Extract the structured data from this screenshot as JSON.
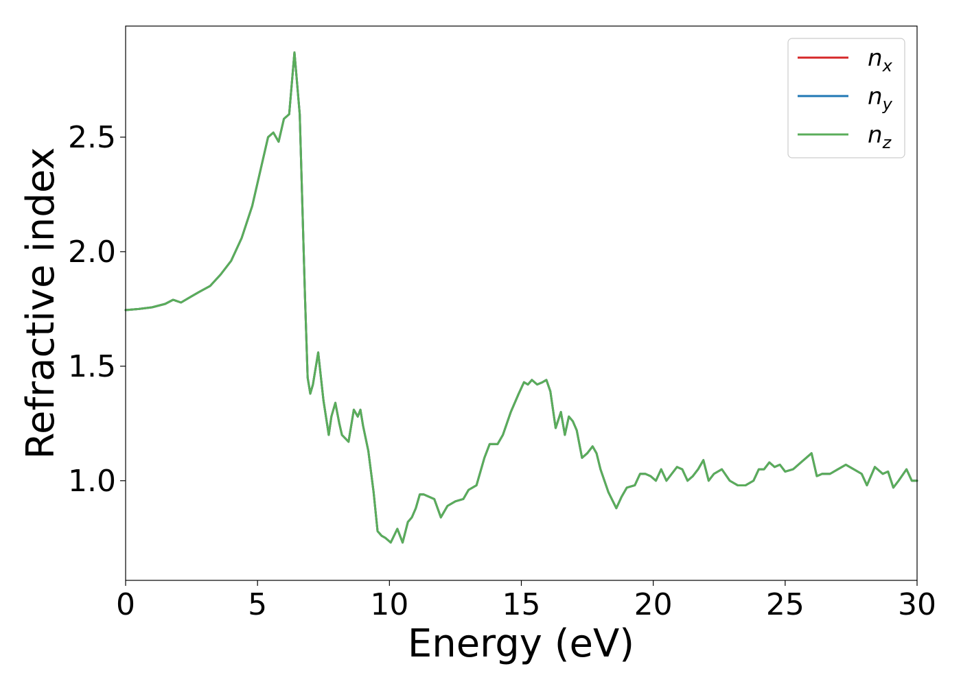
{
  "chart_data": {
    "type": "line",
    "xlabel": "Energy (eV)",
    "ylabel": "Refractive index",
    "xlim": [
      0,
      30
    ],
    "ylim": [
      0.565,
      2.985
    ],
    "xticks": [
      0,
      5,
      10,
      15,
      20,
      25,
      30
    ],
    "xtick_labels": [
      "0",
      "5",
      "10",
      "15",
      "20",
      "25",
      "30"
    ],
    "yticks": [
      1.0,
      1.5,
      2.0,
      2.5
    ],
    "ytick_labels": [
      "1.0",
      "1.5",
      "2.0",
      "2.5"
    ],
    "grid": false,
    "legend_position": "top-right",
    "x": [
      0,
      0.5,
      1,
      1.5,
      1.8,
      2.1,
      2.5,
      2.8,
      3.2,
      3.6,
      4,
      4.4,
      4.8,
      5.2,
      5.4,
      5.6,
      5.8,
      6.0,
      6.2,
      6.4,
      6.6,
      6.8,
      6.9,
      7.0,
      7.1,
      7.3,
      7.5,
      7.7,
      7.8,
      7.95,
      8.1,
      8.2,
      8.45,
      8.65,
      8.8,
      8.9,
      9.0,
      9.2,
      9.4,
      9.55,
      9.7,
      9.85,
      10.05,
      10.3,
      10.5,
      10.7,
      10.85,
      11.0,
      11.15,
      11.3,
      11.5,
      11.7,
      11.95,
      12.2,
      12.5,
      12.8,
      13.0,
      13.3,
      13.6,
      13.8,
      14.1,
      14.3,
      14.6,
      14.9,
      15.1,
      15.25,
      15.4,
      15.6,
      15.8,
      15.95,
      16.1,
      16.3,
      16.5,
      16.65,
      16.8,
      16.95,
      17.1,
      17.3,
      17.5,
      17.7,
      17.85,
      18.0,
      18.3,
      18.6,
      18.8,
      19.0,
      19.3,
      19.5,
      19.7,
      19.9,
      20.1,
      20.3,
      20.5,
      20.7,
      20.9,
      21.1,
      21.3,
      21.5,
      21.7,
      21.9,
      22.1,
      22.3,
      22.6,
      22.9,
      23.2,
      23.5,
      23.8,
      24.0,
      24.2,
      24.4,
      24.6,
      24.8,
      25.0,
      25.3,
      25.6,
      25.8,
      26.0,
      26.2,
      26.4,
      26.7,
      27.0,
      27.3,
      27.6,
      27.9,
      28.1,
      28.4,
      28.7,
      28.9,
      29.1,
      29.3,
      29.6,
      29.8,
      30.0
    ],
    "series": [
      {
        "name": "n_x",
        "color": "#d62728",
        "values": [
          1.745,
          1.75,
          1.757,
          1.772,
          1.79,
          1.778,
          1.805,
          1.825,
          1.85,
          1.9,
          1.96,
          2.06,
          2.2,
          2.4,
          2.5,
          2.52,
          2.48,
          2.58,
          2.6,
          2.87,
          2.6,
          1.8,
          1.45,
          1.38,
          1.42,
          1.56,
          1.35,
          1.2,
          1.28,
          1.34,
          1.25,
          1.2,
          1.17,
          1.31,
          1.28,
          1.31,
          1.24,
          1.13,
          0.95,
          0.78,
          0.76,
          0.75,
          0.73,
          0.79,
          0.73,
          0.82,
          0.84,
          0.88,
          0.94,
          0.94,
          0.93,
          0.92,
          0.84,
          0.89,
          0.91,
          0.92,
          0.96,
          0.98,
          1.1,
          1.16,
          1.16,
          1.2,
          1.3,
          1.38,
          1.43,
          1.42,
          1.44,
          1.42,
          1.43,
          1.44,
          1.39,
          1.23,
          1.3,
          1.2,
          1.28,
          1.26,
          1.22,
          1.1,
          1.12,
          1.15,
          1.12,
          1.05,
          0.95,
          0.88,
          0.93,
          0.97,
          0.98,
          1.03,
          1.03,
          1.02,
          1.0,
          1.05,
          1.0,
          1.03,
          1.06,
          1.05,
          1.0,
          1.02,
          1.05,
          1.09,
          1.0,
          1.03,
          1.05,
          1.0,
          0.98,
          0.98,
          1.0,
          1.05,
          1.05,
          1.08,
          1.06,
          1.07,
          1.04,
          1.05,
          1.08,
          1.1,
          1.12,
          1.02,
          1.03,
          1.03,
          1.05,
          1.07,
          1.05,
          1.03,
          0.98,
          1.06,
          1.03,
          1.04,
          0.97,
          1.0,
          1.05,
          1.0,
          1.0
        ]
      },
      {
        "name": "n_y",
        "color": "#1f77b4",
        "values": [
          1.745,
          1.75,
          1.757,
          1.772,
          1.79,
          1.778,
          1.805,
          1.825,
          1.85,
          1.9,
          1.96,
          2.06,
          2.2,
          2.4,
          2.5,
          2.52,
          2.48,
          2.58,
          2.6,
          2.87,
          2.6,
          1.8,
          1.45,
          1.38,
          1.42,
          1.56,
          1.35,
          1.2,
          1.28,
          1.34,
          1.25,
          1.2,
          1.17,
          1.31,
          1.28,
          1.31,
          1.24,
          1.13,
          0.95,
          0.78,
          0.76,
          0.75,
          0.73,
          0.79,
          0.73,
          0.82,
          0.84,
          0.88,
          0.94,
          0.94,
          0.93,
          0.92,
          0.84,
          0.89,
          0.91,
          0.92,
          0.96,
          0.98,
          1.1,
          1.16,
          1.16,
          1.2,
          1.3,
          1.38,
          1.43,
          1.42,
          1.44,
          1.42,
          1.43,
          1.44,
          1.39,
          1.23,
          1.3,
          1.2,
          1.28,
          1.26,
          1.22,
          1.1,
          1.12,
          1.15,
          1.12,
          1.05,
          0.95,
          0.88,
          0.93,
          0.97,
          0.98,
          1.03,
          1.03,
          1.02,
          1.0,
          1.05,
          1.0,
          1.03,
          1.06,
          1.05,
          1.0,
          1.02,
          1.05,
          1.09,
          1.0,
          1.03,
          1.05,
          1.0,
          0.98,
          0.98,
          1.0,
          1.05,
          1.05,
          1.08,
          1.06,
          1.07,
          1.04,
          1.05,
          1.08,
          1.1,
          1.12,
          1.02,
          1.03,
          1.03,
          1.05,
          1.07,
          1.05,
          1.03,
          0.98,
          1.06,
          1.03,
          1.04,
          0.97,
          1.0,
          1.05,
          1.0,
          1.0
        ]
      },
      {
        "name": "n_z",
        "color": "#5aad5a",
        "values": [
          1.745,
          1.75,
          1.757,
          1.772,
          1.79,
          1.778,
          1.805,
          1.825,
          1.85,
          1.9,
          1.96,
          2.06,
          2.2,
          2.4,
          2.5,
          2.52,
          2.48,
          2.58,
          2.6,
          2.87,
          2.6,
          1.8,
          1.45,
          1.38,
          1.42,
          1.56,
          1.35,
          1.2,
          1.28,
          1.34,
          1.25,
          1.2,
          1.17,
          1.31,
          1.28,
          1.31,
          1.24,
          1.13,
          0.95,
          0.78,
          0.76,
          0.75,
          0.73,
          0.79,
          0.73,
          0.82,
          0.84,
          0.88,
          0.94,
          0.94,
          0.93,
          0.92,
          0.84,
          0.89,
          0.91,
          0.92,
          0.96,
          0.98,
          1.1,
          1.16,
          1.16,
          1.2,
          1.3,
          1.38,
          1.43,
          1.42,
          1.44,
          1.42,
          1.43,
          1.44,
          1.39,
          1.23,
          1.3,
          1.2,
          1.28,
          1.26,
          1.22,
          1.1,
          1.12,
          1.15,
          1.12,
          1.05,
          0.95,
          0.88,
          0.93,
          0.97,
          0.98,
          1.03,
          1.03,
          1.02,
          1.0,
          1.05,
          1.0,
          1.03,
          1.06,
          1.05,
          1.0,
          1.02,
          1.05,
          1.09,
          1.0,
          1.03,
          1.05,
          1.0,
          0.98,
          0.98,
          1.0,
          1.05,
          1.05,
          1.08,
          1.06,
          1.07,
          1.04,
          1.05,
          1.08,
          1.1,
          1.12,
          1.02,
          1.03,
          1.03,
          1.05,
          1.07,
          1.05,
          1.03,
          0.98,
          1.06,
          1.03,
          1.04,
          0.97,
          1.0,
          1.05,
          1.0,
          1.0
        ]
      }
    ],
    "legend": [
      {
        "symbol": "n",
        "subscript": "x",
        "color": "#d62728"
      },
      {
        "symbol": "n",
        "subscript": "y",
        "color": "#1f77b4"
      },
      {
        "symbol": "n",
        "subscript": "z",
        "color": "#5aad5a"
      }
    ]
  }
}
